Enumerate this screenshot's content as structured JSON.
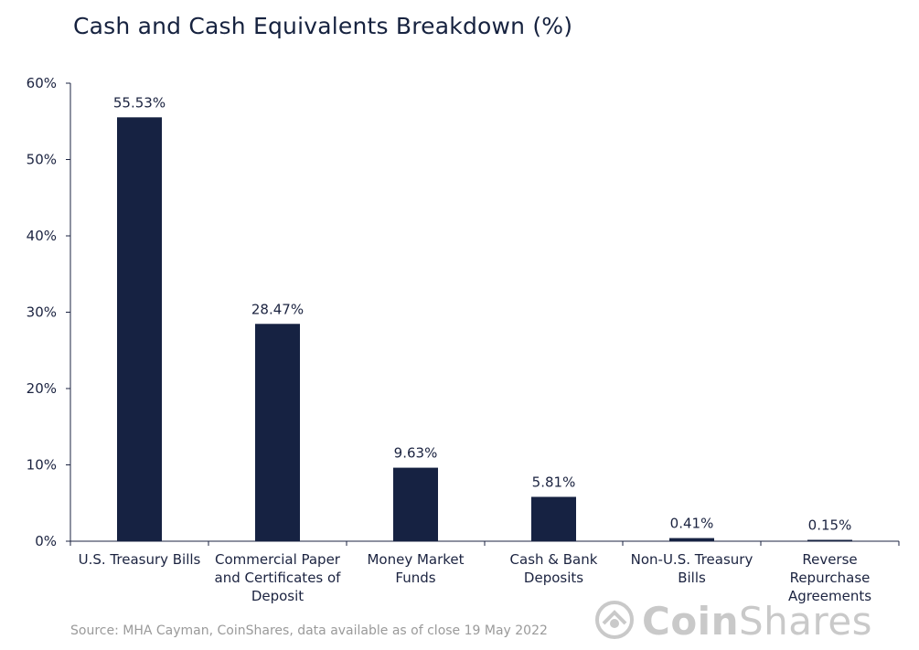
{
  "title": "Cash and Cash Equivalents Breakdown (%)",
  "source": "Source: MHA Cayman, CoinShares, data available as of close 19 May 2022",
  "logo": {
    "text_bold": "Coin",
    "text_light": "Shares",
    "icon": "coinshares-logo-icon"
  },
  "colors": {
    "bar": "#162242",
    "text": "#1b2340",
    "source": "#9a9a9a",
    "logo": "#c9c9c9"
  },
  "chart_data": {
    "type": "bar",
    "title": "Cash and Cash Equivalents Breakdown (%)",
    "categories": [
      [
        "U.S. Treasury Bills"
      ],
      [
        "Commercial Paper",
        "and Certificates of",
        "Deposit"
      ],
      [
        "Money Market",
        "Funds"
      ],
      [
        "Cash & Bank",
        "Deposits"
      ],
      [
        "Non-U.S. Treasury",
        "Bills"
      ],
      [
        "Reverse",
        "Repurchase",
        "Agreements"
      ]
    ],
    "values": [
      55.53,
      28.47,
      9.63,
      5.81,
      0.41,
      0.15
    ],
    "data_labels": [
      "55.53%",
      "28.47%",
      "9.63%",
      "5.81%",
      "0.41%",
      "0.15%"
    ],
    "ylim": [
      0,
      60
    ],
    "yticks": [
      0,
      10,
      20,
      30,
      40,
      50,
      60
    ],
    "ytick_labels": [
      "0%",
      "10%",
      "20%",
      "30%",
      "40%",
      "50%",
      "60%"
    ],
    "grid": false,
    "legend": "none"
  }
}
